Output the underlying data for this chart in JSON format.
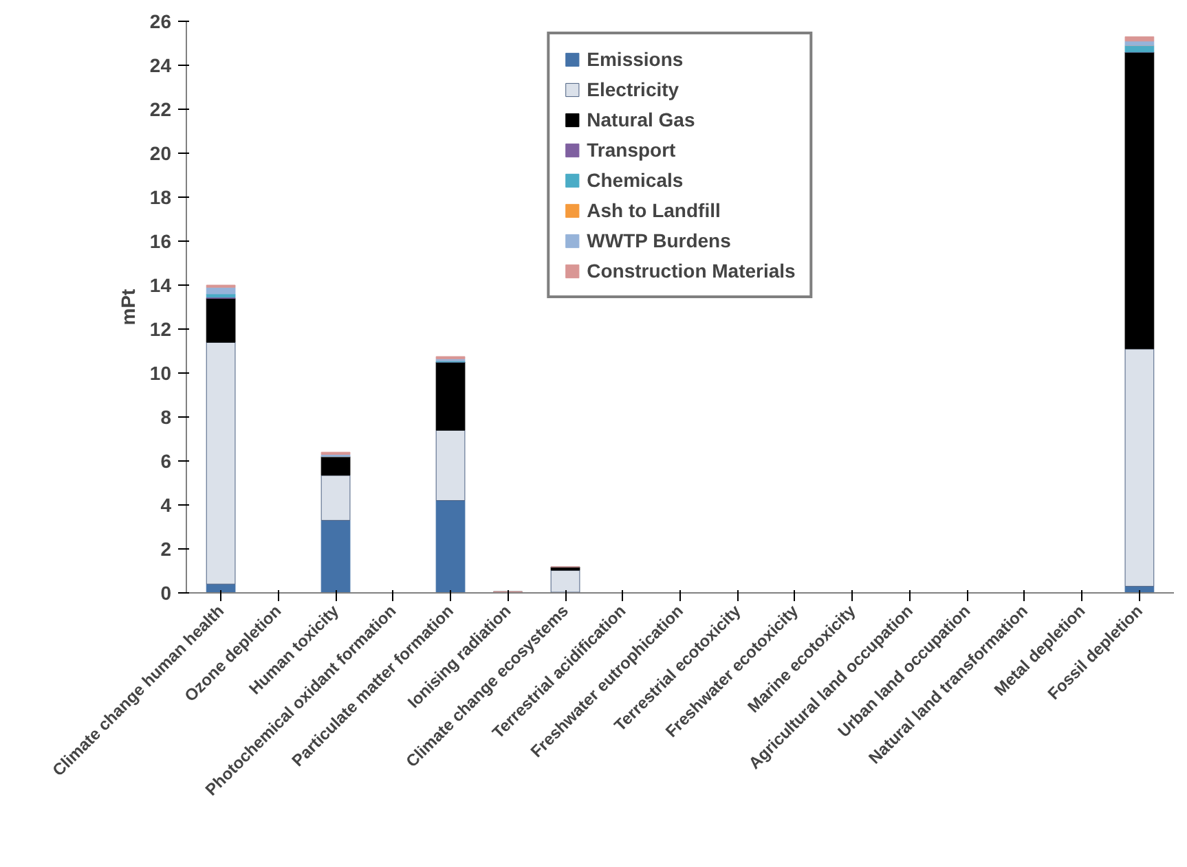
{
  "chart_data": {
    "type": "bar",
    "stacked": true,
    "ylabel": "mPt",
    "ylim": [
      0,
      26
    ],
    "yticks": [
      0,
      2,
      4,
      6,
      8,
      10,
      12,
      14,
      16,
      18,
      20,
      22,
      24,
      26
    ],
    "grid": false,
    "legend": "top",
    "categories": [
      "Climate change human health",
      "Ozone depletion",
      "Human toxicity",
      "Photochemical oxidant formation",
      "Particulate matter formation",
      "Ionising radiation",
      "Climate change ecosystems",
      "Terrestrial acidification",
      "Freshwater eutrophication",
      "Terrestrial ecotoxicity",
      "Freshwater ecotoxicity",
      "Marine ecotoxicity",
      "Agricultural land occupation",
      "Urban land occupation",
      "Natural land transformation",
      "Metal depletion",
      "Fossil depletion"
    ],
    "series": [
      {
        "name": "Emissions",
        "color": "#4472a8",
        "values": [
          0.4,
          0,
          3.3,
          0,
          4.2,
          0,
          0.03,
          0,
          0,
          0,
          0,
          0,
          0,
          0,
          0,
          0,
          0.3
        ]
      },
      {
        "name": "Electricity",
        "color": "#dbe1ea",
        "values": [
          11.0,
          0,
          2.05,
          0,
          3.2,
          0.05,
          1.0,
          0,
          0,
          0,
          0,
          0,
          0,
          0,
          0,
          0,
          10.8
        ]
      },
      {
        "name": "Natural Gas",
        "color": "#000000",
        "values": [
          2.0,
          0,
          0.85,
          0,
          3.1,
          0,
          0.15,
          0,
          0,
          0,
          0,
          0,
          0,
          0,
          0,
          0,
          13.5
        ]
      },
      {
        "name": "Transport",
        "color": "#7f60a0",
        "values": [
          0.05,
          0,
          0,
          0,
          0,
          0,
          0,
          0,
          0,
          0,
          0,
          0,
          0,
          0,
          0,
          0,
          0
        ]
      },
      {
        "name": "Chemicals",
        "color": "#4aacc6",
        "values": [
          0.15,
          0,
          0,
          0,
          0.05,
          0,
          0,
          0,
          0,
          0,
          0,
          0,
          0,
          0,
          0,
          0,
          0.3
        ]
      },
      {
        "name": "Ash to Landfill",
        "color": "#f59a3c",
        "values": [
          null,
          0,
          0,
          0,
          0,
          0,
          0,
          0,
          0,
          0,
          0,
          0,
          0,
          0,
          0,
          0,
          0
        ]
      },
      {
        "name": "WWTP Burdens",
        "color": "#96b3d9",
        "values": [
          0.3,
          0,
          0.1,
          0,
          0.1,
          0,
          0,
          0,
          0,
          0,
          0,
          0,
          0,
          0,
          0,
          0,
          0.2
        ]
      },
      {
        "name": "Construction Materials",
        "color": "#d99694",
        "values": [
          0.1,
          0,
          0.1,
          0,
          0.1,
          0,
          0,
          0,
          0,
          0,
          0,
          0,
          0,
          0,
          0,
          0,
          0.2
        ]
      }
    ]
  }
}
